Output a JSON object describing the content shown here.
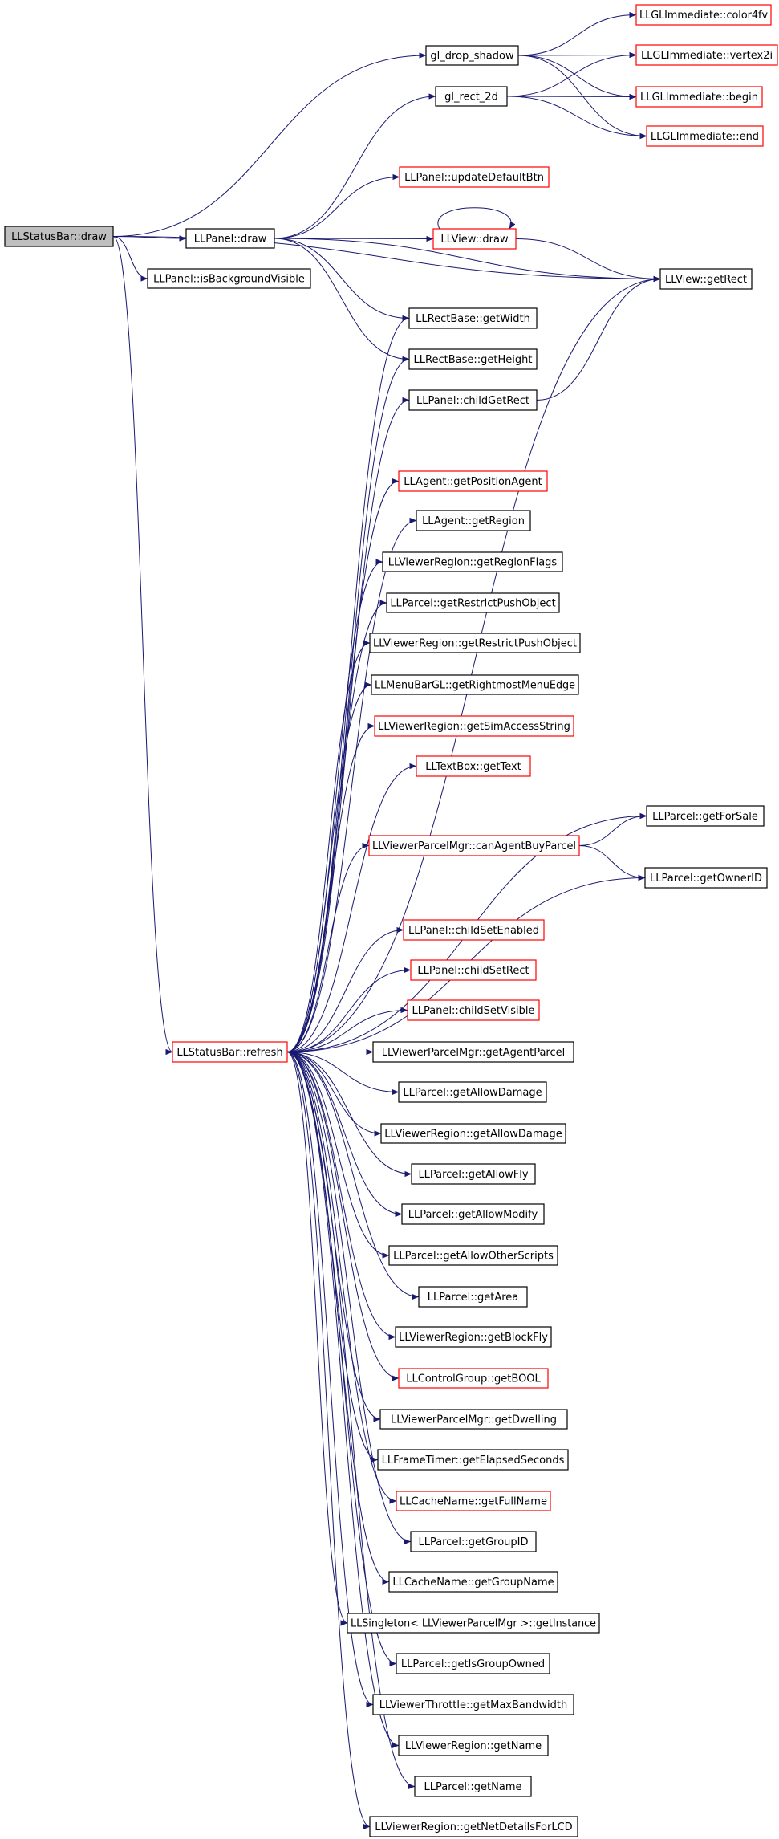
{
  "nodes": [
    {
      "id": "statusbar_draw",
      "label": "LLStatusBar::draw",
      "border": "#000000",
      "fill": "#bfbfbf"
    },
    {
      "id": "gl_drop_shadow",
      "label": "gl_drop_shadow",
      "border": "#000000",
      "fill": "#ffffff"
    },
    {
      "id": "color4fv",
      "label": "LLGLImmediate::color4fv",
      "border": "#ff0000",
      "fill": "#ffffff"
    },
    {
      "id": "vertex2i",
      "label": "LLGLImmediate::vertex2i",
      "border": "#ff0000",
      "fill": "#ffffff"
    },
    {
      "id": "gl_rect_2d",
      "label": "gl_rect_2d",
      "border": "#000000",
      "fill": "#ffffff"
    },
    {
      "id": "begin",
      "label": "LLGLImmediate::begin",
      "border": "#ff0000",
      "fill": "#ffffff"
    },
    {
      "id": "end",
      "label": "LLGLImmediate::end",
      "border": "#ff0000",
      "fill": "#ffffff"
    },
    {
      "id": "update_default_btn",
      "label": "LLPanel::updateDefaultBtn",
      "border": "#ff0000",
      "fill": "#ffffff"
    },
    {
      "id": "panel_draw",
      "label": "LLPanel::draw",
      "border": "#000000",
      "fill": "#ffffff"
    },
    {
      "id": "view_draw",
      "label": "LLView::draw",
      "border": "#ff0000",
      "fill": "#ffffff"
    },
    {
      "id": "is_bg_visible",
      "label": "LLPanel::isBackgroundVisible",
      "border": "#000000",
      "fill": "#ffffff"
    },
    {
      "id": "view_get_rect",
      "label": "LLView::getRect",
      "border": "#000000",
      "fill": "#ffffff"
    },
    {
      "id": "get_width",
      "label": "LLRectBase::getWidth",
      "border": "#000000",
      "fill": "#ffffff"
    },
    {
      "id": "get_height",
      "label": "LLRectBase::getHeight",
      "border": "#000000",
      "fill": "#ffffff"
    },
    {
      "id": "child_get_rect",
      "label": "LLPanel::childGetRect",
      "border": "#000000",
      "fill": "#ffffff"
    },
    {
      "id": "get_position_agent",
      "label": "LLAgent::getPositionAgent",
      "border": "#ff0000",
      "fill": "#ffffff"
    },
    {
      "id": "agent_get_region",
      "label": "LLAgent::getRegion",
      "border": "#000000",
      "fill": "#ffffff"
    },
    {
      "id": "get_region_flags",
      "label": "LLViewerRegion::getRegionFlags",
      "border": "#000000",
      "fill": "#ffffff"
    },
    {
      "id": "parcel_restrict_push",
      "label": "LLParcel::getRestrictPushObject",
      "border": "#000000",
      "fill": "#ffffff"
    },
    {
      "id": "region_restrict_push",
      "label": "LLViewerRegion::getRestrictPushObject",
      "border": "#000000",
      "fill": "#ffffff"
    },
    {
      "id": "rightmost_menu_edge",
      "label": "LLMenuBarGL::getRightmostMenuEdge",
      "border": "#000000",
      "fill": "#ffffff"
    },
    {
      "id": "sim_access_string",
      "label": "LLViewerRegion::getSimAccessString",
      "border": "#ff0000",
      "fill": "#ffffff"
    },
    {
      "id": "textbox_get_text",
      "label": "LLTextBox::getText",
      "border": "#ff0000",
      "fill": "#ffffff"
    },
    {
      "id": "get_for_sale",
      "label": "LLParcel::getForSale",
      "border": "#000000",
      "fill": "#ffffff"
    },
    {
      "id": "can_agent_buy",
      "label": "LLViewerParcelMgr::canAgentBuyParcel",
      "border": "#ff0000",
      "fill": "#ffffff"
    },
    {
      "id": "get_owner_id",
      "label": "LLParcel::getOwnerID",
      "border": "#000000",
      "fill": "#ffffff"
    },
    {
      "id": "child_set_enabled",
      "label": "LLPanel::childSetEnabled",
      "border": "#ff0000",
      "fill": "#ffffff"
    },
    {
      "id": "child_set_rect",
      "label": "LLPanel::childSetRect",
      "border": "#ff0000",
      "fill": "#ffffff"
    },
    {
      "id": "child_set_visible",
      "label": "LLPanel::childSetVisible",
      "border": "#ff0000",
      "fill": "#ffffff"
    },
    {
      "id": "statusbar_refresh",
      "label": "LLStatusBar::refresh",
      "border": "#ff0000",
      "fill": "#ffffff"
    },
    {
      "id": "get_agent_parcel",
      "label": "LLViewerParcelMgr::getAgentParcel",
      "border": "#000000",
      "fill": "#ffffff"
    },
    {
      "id": "parcel_allow_damage",
      "label": "LLParcel::getAllowDamage",
      "border": "#000000",
      "fill": "#ffffff"
    },
    {
      "id": "region_allow_damage",
      "label": "LLViewerRegion::getAllowDamage",
      "border": "#000000",
      "fill": "#ffffff"
    },
    {
      "id": "allow_fly",
      "label": "LLParcel::getAllowFly",
      "border": "#000000",
      "fill": "#ffffff"
    },
    {
      "id": "allow_modify",
      "label": "LLParcel::getAllowModify",
      "border": "#000000",
      "fill": "#ffffff"
    },
    {
      "id": "allow_other_scripts",
      "label": "LLParcel::getAllowOtherScripts",
      "border": "#000000",
      "fill": "#ffffff"
    },
    {
      "id": "get_area",
      "label": "LLParcel::getArea",
      "border": "#000000",
      "fill": "#ffffff"
    },
    {
      "id": "block_fly",
      "label": "LLViewerRegion::getBlockFly",
      "border": "#000000",
      "fill": "#ffffff"
    },
    {
      "id": "control_get_bool",
      "label": "LLControlGroup::getBOOL",
      "border": "#ff0000",
      "fill": "#ffffff"
    },
    {
      "id": "get_dwelling",
      "label": "LLViewerParcelMgr::getDwelling",
      "border": "#000000",
      "fill": "#ffffff"
    },
    {
      "id": "elapsed_seconds",
      "label": "LLFrameTimer::getElapsedSeconds",
      "border": "#000000",
      "fill": "#ffffff"
    },
    {
      "id": "get_full_name",
      "label": "LLCacheName::getFullName",
      "border": "#ff0000",
      "fill": "#ffffff"
    },
    {
      "id": "get_group_id",
      "label": "LLParcel::getGroupID",
      "border": "#000000",
      "fill": "#ffffff"
    },
    {
      "id": "get_group_name",
      "label": "LLCacheName::getGroupName",
      "border": "#000000",
      "fill": "#ffffff"
    },
    {
      "id": "get_instance",
      "label": "LLSingleton< LLViewerParcelMgr >::getInstance",
      "border": "#000000",
      "fill": "#ffffff"
    },
    {
      "id": "is_group_owned",
      "label": "LLParcel::getIsGroupOwned",
      "border": "#000000",
      "fill": "#ffffff"
    },
    {
      "id": "max_bandwidth",
      "label": "LLViewerThrottle::getMaxBandwidth",
      "border": "#000000",
      "fill": "#ffffff"
    },
    {
      "id": "region_get_name",
      "label": "LLViewerRegion::getName",
      "border": "#000000",
      "fill": "#ffffff"
    },
    {
      "id": "parcel_get_name",
      "label": "LLParcel::getName",
      "border": "#000000",
      "fill": "#ffffff"
    },
    {
      "id": "net_details_lcd",
      "label": "LLViewerRegion::getNetDetailsForLCD",
      "border": "#000000",
      "fill": "#ffffff"
    }
  ],
  "edges": [
    [
      "statusbar_draw",
      "gl_drop_shadow"
    ],
    [
      "statusbar_draw",
      "view_get_rect"
    ],
    [
      "statusbar_draw",
      "panel_draw"
    ],
    [
      "statusbar_draw",
      "is_bg_visible"
    ],
    [
      "statusbar_draw",
      "statusbar_refresh"
    ],
    [
      "gl_drop_shadow",
      "color4fv"
    ],
    [
      "gl_drop_shadow",
      "vertex2i"
    ],
    [
      "gl_drop_shadow",
      "begin"
    ],
    [
      "gl_drop_shadow",
      "end"
    ],
    [
      "gl_rect_2d",
      "vertex2i"
    ],
    [
      "gl_rect_2d",
      "begin"
    ],
    [
      "gl_rect_2d",
      "end"
    ],
    [
      "panel_draw",
      "gl_rect_2d"
    ],
    [
      "panel_draw",
      "update_default_btn"
    ],
    [
      "panel_draw",
      "view_draw"
    ],
    [
      "panel_draw",
      "view_get_rect"
    ],
    [
      "panel_draw",
      "get_width"
    ],
    [
      "panel_draw",
      "get_height"
    ],
    [
      "view_draw",
      "view_draw"
    ],
    [
      "view_draw",
      "view_get_rect"
    ],
    [
      "child_get_rect",
      "view_get_rect"
    ],
    [
      "can_agent_buy",
      "get_for_sale"
    ],
    [
      "can_agent_buy",
      "get_owner_id"
    ],
    [
      "statusbar_refresh",
      "view_get_rect"
    ],
    [
      "statusbar_refresh",
      "get_width"
    ],
    [
      "statusbar_refresh",
      "get_height"
    ],
    [
      "statusbar_refresh",
      "child_get_rect"
    ],
    [
      "statusbar_refresh",
      "get_position_agent"
    ],
    [
      "statusbar_refresh",
      "agent_get_region"
    ],
    [
      "statusbar_refresh",
      "get_region_flags"
    ],
    [
      "statusbar_refresh",
      "parcel_restrict_push"
    ],
    [
      "statusbar_refresh",
      "region_restrict_push"
    ],
    [
      "statusbar_refresh",
      "rightmost_menu_edge"
    ],
    [
      "statusbar_refresh",
      "sim_access_string"
    ],
    [
      "statusbar_refresh",
      "textbox_get_text"
    ],
    [
      "statusbar_refresh",
      "get_for_sale"
    ],
    [
      "statusbar_refresh",
      "can_agent_buy"
    ],
    [
      "statusbar_refresh",
      "get_owner_id"
    ],
    [
      "statusbar_refresh",
      "child_set_enabled"
    ],
    [
      "statusbar_refresh",
      "child_set_rect"
    ],
    [
      "statusbar_refresh",
      "child_set_visible"
    ],
    [
      "statusbar_refresh",
      "get_agent_parcel"
    ],
    [
      "statusbar_refresh",
      "parcel_allow_damage"
    ],
    [
      "statusbar_refresh",
      "region_allow_damage"
    ],
    [
      "statusbar_refresh",
      "allow_fly"
    ],
    [
      "statusbar_refresh",
      "allow_modify"
    ],
    [
      "statusbar_refresh",
      "allow_other_scripts"
    ],
    [
      "statusbar_refresh",
      "get_area"
    ],
    [
      "statusbar_refresh",
      "block_fly"
    ],
    [
      "statusbar_refresh",
      "control_get_bool"
    ],
    [
      "statusbar_refresh",
      "get_dwelling"
    ],
    [
      "statusbar_refresh",
      "elapsed_seconds"
    ],
    [
      "statusbar_refresh",
      "get_full_name"
    ],
    [
      "statusbar_refresh",
      "get_group_id"
    ],
    [
      "statusbar_refresh",
      "get_group_name"
    ],
    [
      "statusbar_refresh",
      "get_instance"
    ],
    [
      "statusbar_refresh",
      "is_group_owned"
    ],
    [
      "statusbar_refresh",
      "max_bandwidth"
    ],
    [
      "statusbar_refresh",
      "region_get_name"
    ],
    [
      "statusbar_refresh",
      "parcel_get_name"
    ],
    [
      "statusbar_refresh",
      "net_details_lcd"
    ]
  ],
  "colors": {
    "edge": "#191970",
    "text": "#000000"
  }
}
